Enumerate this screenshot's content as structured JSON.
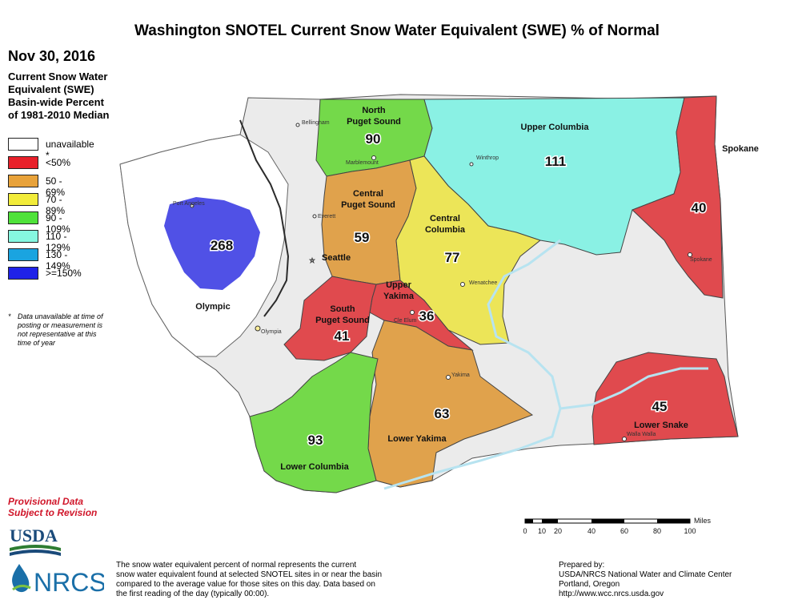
{
  "title": "Washington SNOTEL Current Snow Water Equivalent (SWE) % of Normal",
  "date": "Nov 30, 2016",
  "legend": {
    "heading_lines": [
      "Current Snow Water",
      "Equivalent (SWE)",
      "Basin-wide Percent",
      "of 1981-2010 Median"
    ],
    "items": [
      {
        "label": "unavailable *",
        "color": "#ffffff"
      },
      {
        "label": "<50%",
        "color": "#e8202a"
      },
      {
        "label": "50 - 69%",
        "color": "#e8a23a"
      },
      {
        "label": "70 - 89%",
        "color": "#f2ec3a"
      },
      {
        "label": "90 - 109%",
        "color": "#4fe23a"
      },
      {
        "label": "110 - 129%",
        "color": "#86f7e0"
      },
      {
        "label": "130 - 149%",
        "color": "#1aa4e0"
      },
      {
        "label": ">=150%",
        "color": "#1f22e8"
      }
    ],
    "note_star": "*",
    "note": "Data unavailable at time of posting or measurement is not representative at this time of year"
  },
  "basins": [
    {
      "name": "North Puget Sound",
      "name_lines": [
        "North",
        "Puget Sound"
      ],
      "value": "90",
      "color": "#74d94a"
    },
    {
      "name": "Upper Columbia",
      "name_lines": [
        "Upper Columbia"
      ],
      "value": "111",
      "color": "#8af1e4"
    },
    {
      "name": "Spokane",
      "name_lines": [
        "Spokane"
      ],
      "value": "40",
      "color": "#e04a4e"
    },
    {
      "name": "Central Puget Sound",
      "name_lines": [
        "Central",
        "Puget Sound"
      ],
      "value": "59",
      "color": "#e0a24c"
    },
    {
      "name": "Central Columbia",
      "name_lines": [
        "Central",
        "Columbia"
      ],
      "value": "77",
      "color": "#ece558"
    },
    {
      "name": "Olympic",
      "name_lines": [
        "Olympic"
      ],
      "value": "268",
      "color": "#5051e6"
    },
    {
      "name": "Upper Yakima",
      "name_lines": [
        "Upper",
        "Yakima"
      ],
      "value": "36",
      "color": "#e04a4e"
    },
    {
      "name": "South Puget Sound",
      "name_lines": [
        "South",
        "Puget Sound"
      ],
      "value": "41",
      "color": "#e04a4e"
    },
    {
      "name": "Lower Yakima",
      "name_lines": [
        "Lower Yakima"
      ],
      "value": "63",
      "color": "#e0a24c"
    },
    {
      "name": "Lower Columbia",
      "name_lines": [
        "Lower Columbia"
      ],
      "value": "93",
      "color": "#74d94a"
    },
    {
      "name": "Lower Snake",
      "name_lines": [
        "Lower Snake"
      ],
      "value": "45",
      "color": "#e04a4e"
    }
  ],
  "cities": [
    "Bellingham",
    "Marblemount",
    "Winthrop",
    "Port Angeles",
    "Everett",
    "Seattle",
    "Wenatchee",
    "Spokane",
    "Olympia",
    "Cle Elum",
    "Yakima",
    "Walla Walla"
  ],
  "scale": {
    "unit": "Miles",
    "ticks": [
      "0",
      "10",
      "20",
      "40",
      "60",
      "80",
      "100"
    ]
  },
  "provisional": [
    "Provisional Data",
    "Subject to Revision"
  ],
  "logos": {
    "usda": "USDA",
    "nrcs": "NRCS"
  },
  "footnote": [
    "The snow water equivalent percent of normal represents the current",
    "snow water equivalent found at selected SNOTEL sites in or near the basin",
    "compared to the average value for those sites on this day. Data based on",
    "the first reading of the day (typically 00:00)."
  ],
  "prepared": [
    "Prepared by:",
    "USDA/NRCS National Water and Climate Center",
    "Portland, Oregon",
    "http://www.wcc.nrcs.usda.gov"
  ]
}
